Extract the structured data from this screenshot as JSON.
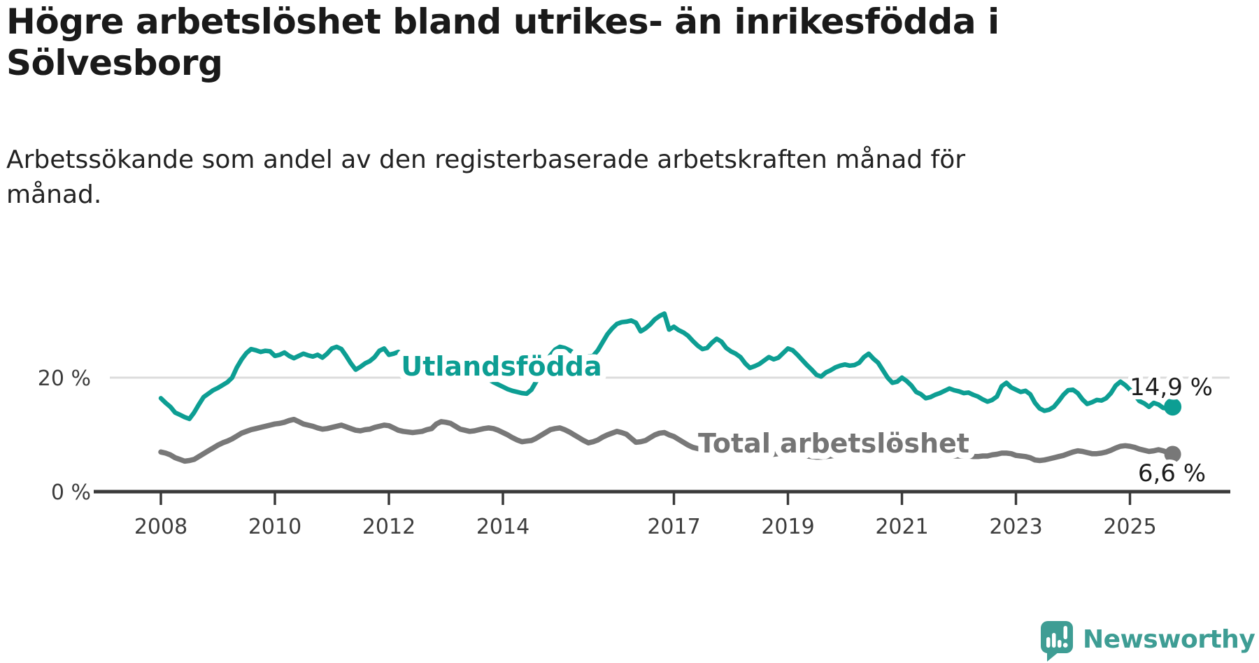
{
  "header": {
    "title_line1": "Högre arbetslöshet bland utrikes- än inrikesfödda i",
    "title_line2": "Sölvesborg",
    "subtitle_line1": "Arbetssökande som andel av den registerbaserade arbetskraften månad för",
    "subtitle_line2": "månad."
  },
  "chart_data": {
    "type": "line",
    "title": "Högre arbetslöshet bland utrikes- än inrikesfödda i Sölvesborg",
    "subtitle": "Arbetssökande som andel av den registerbaserade arbetskraften månad för månad.",
    "unit": "%",
    "grid": "single horizontal gridline at 20 %",
    "legend_position": "inline labels on lines",
    "x_axis": {
      "start_year": 2008,
      "interval": "monthly",
      "end_point": "2025 (autumn)",
      "tick_years": [
        2008,
        2010,
        2012,
        2014,
        2017,
        2019,
        2021,
        2023,
        2025
      ]
    },
    "y_axis": {
      "ticks": [
        {
          "label": "20 %",
          "value": 20
        },
        {
          "label": "0 %",
          "value": 0
        }
      ],
      "range": [
        0,
        38
      ]
    },
    "series": [
      {
        "name": "Utlandsfödda",
        "color": "#0D9E93",
        "end_label": "14,9 %",
        "last_value": 14.9,
        "values": [
          16.4,
          15.6,
          14.9,
          13.9,
          13.5,
          13.1,
          12.8,
          13.9,
          15.3,
          16.6,
          17.2,
          17.8,
          18.2,
          18.7,
          19.2,
          20.0,
          21.8,
          23.2,
          24.3,
          25.0,
          24.8,
          24.5,
          24.7,
          24.6,
          23.8,
          24.0,
          24.4,
          23.8,
          23.4,
          23.8,
          24.2,
          23.9,
          23.7,
          24.0,
          23.5,
          24.2,
          25.1,
          25.4,
          25.0,
          23.8,
          22.5,
          21.4,
          21.9,
          22.5,
          22.9,
          23.6,
          24.7,
          25.1,
          24.0,
          24.2,
          24.5,
          24.0,
          23.5,
          23.1,
          22.9,
          22.6,
          22.4,
          22.7,
          23.1,
          23.3,
          23.4,
          23.2,
          22.8,
          22.3,
          21.8,
          21.3,
          20.9,
          20.5,
          20.1,
          19.7,
          19.2,
          18.8,
          18.4,
          18.0,
          17.7,
          17.5,
          17.3,
          17.2,
          17.9,
          19.3,
          21.0,
          22.6,
          23.9,
          24.9,
          25.4,
          25.2,
          24.8,
          24.3,
          24.0,
          23.8,
          23.7,
          23.8,
          24.8,
          26.2,
          27.6,
          28.6,
          29.4,
          29.7,
          29.8,
          30.0,
          29.6,
          28.1,
          28.6,
          29.3,
          30.2,
          30.8,
          31.2,
          28.4,
          28.9,
          28.3,
          27.9,
          27.3,
          26.4,
          25.6,
          25.0,
          25.2,
          26.1,
          26.8,
          26.3,
          25.2,
          24.6,
          24.2,
          23.6,
          22.5,
          21.7,
          22.0,
          22.4,
          23.0,
          23.6,
          23.2,
          23.5,
          24.3,
          25.1,
          24.8,
          24.0,
          23.1,
          22.2,
          21.4,
          20.5,
          20.2,
          20.9,
          21.3,
          21.8,
          22.1,
          22.3,
          22.1,
          22.2,
          22.6,
          23.6,
          24.2,
          23.3,
          22.6,
          21.3,
          20.0,
          19.1,
          19.3,
          20.0,
          19.4,
          18.6,
          17.5,
          17.1,
          16.4,
          16.6,
          17.0,
          17.3,
          17.7,
          18.1,
          17.8,
          17.6,
          17.3,
          17.4,
          17.0,
          16.7,
          16.2,
          15.8,
          16.1,
          16.7,
          18.5,
          19.1,
          18.3,
          17.9,
          17.5,
          17.7,
          17.1,
          15.6,
          14.6,
          14.2,
          14.4,
          14.9,
          15.9,
          17.0,
          17.8,
          17.9,
          17.3,
          16.2,
          15.4,
          15.7,
          16.1,
          16.0,
          16.4,
          17.3,
          18.6,
          19.3,
          18.7,
          17.9,
          17.0,
          15.9,
          15.5,
          14.9,
          15.6,
          15.3,
          14.7,
          14.6,
          14.9
        ]
      },
      {
        "name": "Total arbetslöshet",
        "color": "#787878",
        "end_label": "6,6 %",
        "last_value": 6.6,
        "values": [
          7.0,
          6.8,
          6.5,
          6.0,
          5.7,
          5.4,
          5.5,
          5.7,
          6.2,
          6.7,
          7.2,
          7.7,
          8.2,
          8.6,
          8.9,
          9.3,
          9.8,
          10.3,
          10.6,
          10.9,
          11.1,
          11.3,
          11.5,
          11.7,
          11.9,
          12.0,
          12.2,
          12.5,
          12.7,
          12.3,
          11.9,
          11.7,
          11.5,
          11.2,
          11.0,
          11.1,
          11.3,
          11.5,
          11.7,
          11.4,
          11.1,
          10.8,
          10.7,
          10.9,
          11.0,
          11.3,
          11.5,
          11.7,
          11.6,
          11.2,
          10.8,
          10.6,
          10.5,
          10.4,
          10.5,
          10.6,
          10.9,
          11.1,
          11.9,
          12.3,
          12.2,
          12.0,
          11.5,
          11.0,
          10.8,
          10.6,
          10.7,
          10.9,
          11.1,
          11.2,
          11.1,
          10.8,
          10.4,
          10.0,
          9.5,
          9.1,
          8.8,
          8.9,
          9.0,
          9.4,
          9.9,
          10.4,
          10.9,
          11.1,
          11.2,
          10.9,
          10.5,
          10.0,
          9.5,
          9.0,
          8.6,
          8.8,
          9.1,
          9.6,
          10.0,
          10.3,
          10.6,
          10.4,
          10.1,
          9.4,
          8.7,
          8.8,
          9.0,
          9.5,
          10.0,
          10.3,
          10.4,
          10.0,
          9.7,
          9.2,
          8.7,
          8.2,
          7.8,
          7.6,
          7.4,
          7.3,
          7.2,
          7.1,
          7.0,
          7.0,
          6.9,
          6.8,
          6.7,
          6.6,
          6.5,
          6.4,
          6.4,
          6.5,
          6.5,
          6.6,
          6.7,
          6.7,
          6.8,
          6.7,
          6.6,
          6.4,
          6.3,
          6.2,
          6.1,
          6.1,
          6.2,
          6.3,
          6.4,
          6.4,
          6.5,
          6.6,
          7.0,
          7.6,
          8.2,
          8.5,
          8.4,
          8.3,
          8.2,
          8.0,
          7.9,
          7.7,
          7.6,
          7.4,
          7.3,
          7.1,
          7.0,
          6.8,
          6.7,
          6.6,
          6.5,
          6.4,
          6.4,
          6.3,
          6.3,
          6.3,
          6.3,
          6.2,
          6.2,
          6.3,
          6.3,
          6.5,
          6.6,
          6.8,
          6.8,
          6.7,
          6.4,
          6.3,
          6.2,
          6.0,
          5.6,
          5.5,
          5.6,
          5.8,
          6.0,
          6.2,
          6.4,
          6.7,
          7.0,
          7.2,
          7.1,
          6.9,
          6.7,
          6.7,
          6.8,
          7.0,
          7.3,
          7.7,
          8.0,
          8.1,
          8.0,
          7.8,
          7.5,
          7.3,
          7.1,
          7.2,
          7.4,
          7.2,
          6.9,
          6.6
        ]
      }
    ]
  },
  "branding": {
    "logo_text": "Newsworthy",
    "logo_color": "#3E9D94"
  }
}
